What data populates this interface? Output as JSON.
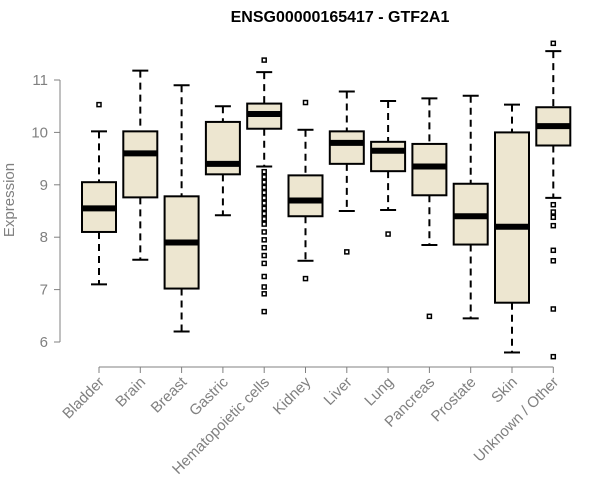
{
  "chart_data": {
    "type": "boxplot",
    "title": "ENSG00000165417 - GTF2A1",
    "xlabel": "",
    "ylabel": "Expression",
    "ylim": [
      5.5,
      11.8
    ],
    "yticks": [
      6,
      7,
      8,
      9,
      10,
      11
    ],
    "box_color": "#ede6d0",
    "categories": [
      "Bladder",
      "Brain",
      "Breast",
      "Gastric",
      "Hematopoietic cells",
      "Kidney",
      "Liver",
      "Lung",
      "Pancreas",
      "Prostate",
      "Skin",
      "Unknown / Other"
    ],
    "boxes": [
      {
        "name": "Bladder",
        "whisker_low": 7.1,
        "q1": 8.1,
        "median": 8.55,
        "q3": 9.05,
        "whisker_high": 10.02,
        "outliers": [
          10.53
        ]
      },
      {
        "name": "Brain",
        "whisker_low": 7.57,
        "q1": 8.76,
        "median": 9.6,
        "q3": 10.02,
        "whisker_high": 11.18,
        "outliers": []
      },
      {
        "name": "Breast",
        "whisker_low": 6.2,
        "q1": 7.02,
        "median": 7.9,
        "q3": 8.78,
        "whisker_high": 10.9,
        "outliers": []
      },
      {
        "name": "Gastric",
        "whisker_low": 8.42,
        "q1": 9.2,
        "median": 9.4,
        "q3": 10.2,
        "whisker_high": 10.5,
        "outliers": []
      },
      {
        "name": "Hematopoietic cells",
        "whisker_low": 9.35,
        "q1": 10.07,
        "median": 10.35,
        "q3": 10.55,
        "whisker_high": 11.15,
        "outliers": [
          11.38,
          9.25,
          9.15,
          9.05,
          8.95,
          8.85,
          8.75,
          8.65,
          8.55,
          8.45,
          8.35,
          8.25,
          8.1,
          7.95,
          7.8,
          7.65,
          7.5,
          7.25,
          7.05,
          6.92,
          6.58
        ]
      },
      {
        "name": "Kidney",
        "whisker_low": 7.55,
        "q1": 8.4,
        "median": 8.7,
        "q3": 9.18,
        "whisker_high": 10.05,
        "outliers": [
          10.57,
          7.21
        ]
      },
      {
        "name": "Liver",
        "whisker_low": 8.5,
        "q1": 9.4,
        "median": 9.8,
        "q3": 10.02,
        "whisker_high": 10.78,
        "outliers": [
          7.72
        ]
      },
      {
        "name": "Lung",
        "whisker_low": 8.52,
        "q1": 9.26,
        "median": 9.65,
        "q3": 9.82,
        "whisker_high": 10.6,
        "outliers": [
          8.06
        ]
      },
      {
        "name": "Pancreas",
        "whisker_low": 7.85,
        "q1": 8.8,
        "median": 9.35,
        "q3": 9.78,
        "whisker_high": 10.65,
        "outliers": [
          6.49
        ]
      },
      {
        "name": "Prostate",
        "whisker_low": 6.45,
        "q1": 7.86,
        "median": 8.4,
        "q3": 9.02,
        "whisker_high": 10.7,
        "outliers": []
      },
      {
        "name": "Skin",
        "whisker_low": 5.8,
        "q1": 6.75,
        "median": 8.2,
        "q3": 10.0,
        "whisker_high": 10.53,
        "outliers": []
      },
      {
        "name": "Unknown / Other",
        "whisker_low": 8.75,
        "q1": 9.75,
        "median": 10.12,
        "q3": 10.48,
        "whisker_high": 11.55,
        "outliers": [
          11.7,
          8.62,
          8.48,
          8.38,
          8.22,
          7.75,
          7.55,
          6.63,
          5.72
        ]
      }
    ]
  }
}
